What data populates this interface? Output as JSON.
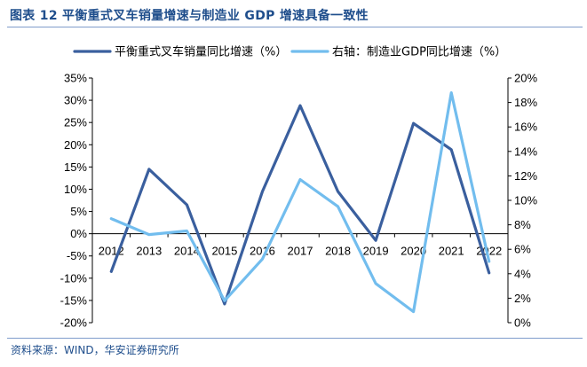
{
  "figure": {
    "title": "图表 12 平衡重式叉车销量增速与制造业 GDP 增速具备一致性",
    "source": "资料来源：WIND，华安证券研究所"
  },
  "chart_data": {
    "type": "line",
    "title": "",
    "x": [
      "2012",
      "2013",
      "2014",
      "2015",
      "2016",
      "2017",
      "2018",
      "2019",
      "2020",
      "2021",
      "2022"
    ],
    "series": [
      {
        "name": "平衡重式叉车销量同比增速（%）",
        "axis": "left",
        "color": "#3a5f9e",
        "values": [
          -8.5,
          14.5,
          6.5,
          -15.8,
          9.5,
          28.8,
          9.5,
          -1.5,
          24.8,
          18.9,
          -8.8
        ]
      },
      {
        "name": "右轴：制造业GDP同比增速（%）",
        "axis": "right",
        "color": "#72bdee",
        "values": [
          8.5,
          7.2,
          7.5,
          1.8,
          5.2,
          11.7,
          9.5,
          3.2,
          0.9,
          18.8,
          5.0
        ]
      }
    ],
    "y_left": {
      "ylim": [
        -20,
        35
      ],
      "ticks": [
        35,
        30,
        25,
        20,
        15,
        10,
        5,
        0,
        -5,
        -10,
        -15,
        -20
      ],
      "tick_labels": [
        "35%",
        "30%",
        "25%",
        "20%",
        "15%",
        "10%",
        "5%",
        "0%",
        "-5%",
        "-10%",
        "-15%",
        "-20%"
      ]
    },
    "y_right": {
      "ylim": [
        0,
        20
      ],
      "ticks": [
        20,
        18,
        16,
        14,
        12,
        10,
        8,
        6,
        4,
        2,
        0
      ],
      "tick_labels": [
        "20%",
        "18%",
        "16%",
        "14%",
        "12%",
        "10%",
        "8%",
        "6%",
        "4%",
        "2%",
        "0%"
      ]
    },
    "xlabel": "",
    "ylabel": "",
    "grid": false,
    "legend": "top"
  }
}
